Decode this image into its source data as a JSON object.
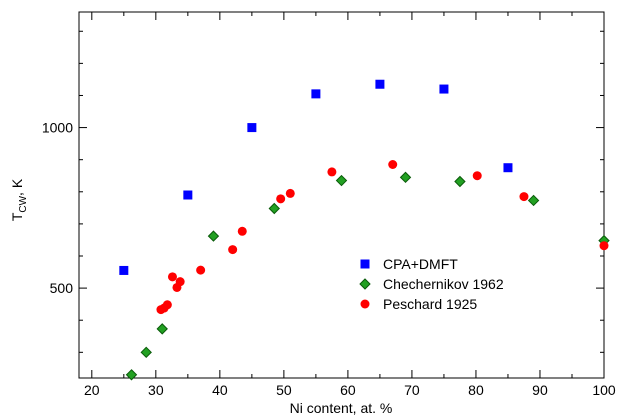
{
  "chart_data": {
    "type": "scatter",
    "title": "",
    "xlabel": "Ni content, at. %",
    "ylabel": {
      "main": "T",
      "sub": "CW",
      "suffix": ", K"
    },
    "xlim": [
      18,
      100
    ],
    "ylim": [
      220,
      1360
    ],
    "x_ticks": [
      20,
      30,
      40,
      50,
      60,
      70,
      80,
      90,
      100
    ],
    "y_ticks": [
      500,
      1000
    ],
    "grid": false,
    "legend_position": "center-right",
    "series": [
      {
        "name": "CPA+DMFT",
        "marker": "square",
        "color": "#0000ff",
        "points": [
          [
            25,
            555
          ],
          [
            35,
            790
          ],
          [
            45,
            1000
          ],
          [
            55,
            1105
          ],
          [
            65,
            1135
          ],
          [
            75,
            1120
          ],
          [
            85,
            875
          ]
        ]
      },
      {
        "name": "Chechernikov 1962",
        "marker": "diamond",
        "color": "#22a022",
        "edge": "#0a5a0a",
        "points": [
          [
            26.2,
            230
          ],
          [
            28.5,
            300
          ],
          [
            31,
            373
          ],
          [
            39,
            662
          ],
          [
            48.5,
            748
          ],
          [
            59,
            835
          ],
          [
            69,
            845
          ],
          [
            77.5,
            832
          ],
          [
            89,
            773
          ],
          [
            100,
            648
          ]
        ]
      },
      {
        "name": "Peschard 1925",
        "marker": "circle",
        "color": "#ff0000",
        "points": [
          [
            30.8,
            433
          ],
          [
            31.3,
            438
          ],
          [
            31.8,
            448
          ],
          [
            32.6,
            535
          ],
          [
            33.3,
            502
          ],
          [
            33.8,
            520
          ],
          [
            37,
            556
          ],
          [
            42,
            620
          ],
          [
            43.5,
            677
          ],
          [
            49.5,
            778
          ],
          [
            51,
            795
          ],
          [
            57.5,
            862
          ],
          [
            67,
            885
          ],
          [
            80.2,
            850
          ],
          [
            87.5,
            785
          ],
          [
            100,
            632
          ]
        ]
      }
    ]
  }
}
